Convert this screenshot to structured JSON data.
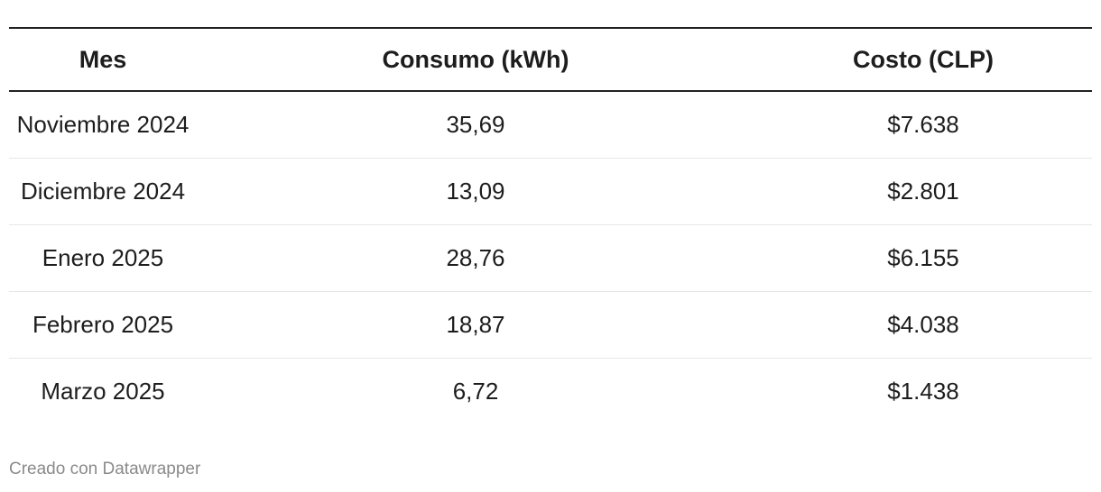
{
  "table": {
    "headers": [
      "Mes",
      "Consumo (kWh)",
      "Costo (CLP)"
    ],
    "rows": [
      [
        "Noviembre 2024",
        "35,69",
        "$7.638"
      ],
      [
        "Diciembre 2024",
        "13,09",
        "$2.801"
      ],
      [
        "Enero 2025",
        "28,76",
        "$6.155"
      ],
      [
        "Febrero 2025",
        "18,87",
        "$4.038"
      ],
      [
        "Marzo 2025",
        "6,72",
        "$1.438"
      ]
    ]
  },
  "footer": "Creado con Datawrapper"
}
